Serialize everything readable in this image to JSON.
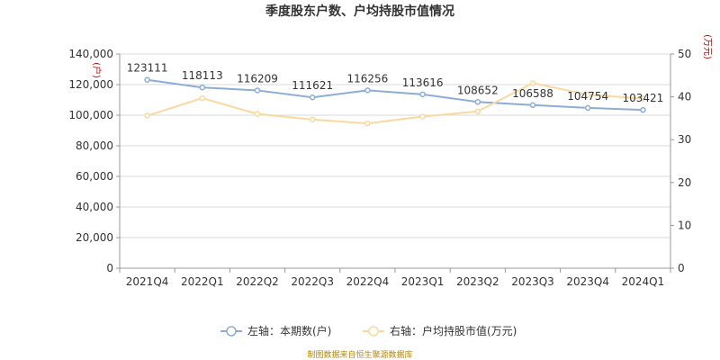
{
  "chart_data": {
    "type": "line",
    "title": "季度股东户数、户均持股市值情况",
    "categories": [
      "2021Q4",
      "2022Q1",
      "2022Q2",
      "2022Q3",
      "2022Q4",
      "2023Q1",
      "2023Q2",
      "2023Q3",
      "2023Q4",
      "2024Q1"
    ],
    "series": [
      {
        "name": "左轴：本期数(户)",
        "axis": "left",
        "color": "#8eacd8",
        "values": [
          123111,
          118113,
          116209,
          111621,
          116256,
          113616,
          108652,
          106588,
          104754,
          103421
        ],
        "labels": [
          "123111",
          "118113",
          "116209",
          "111621",
          "116256",
          "113616",
          "108652",
          "106588",
          "104754",
          "103421"
        ]
      },
      {
        "name": "右轴：户均持股市值(万元)",
        "axis": "right",
        "color": "#fad9a0",
        "values": [
          35.6,
          39.7,
          36.0,
          34.7,
          33.8,
          35.4,
          36.6,
          43.2,
          40.5,
          39.6
        ]
      }
    ],
    "y_left": {
      "unit": "(户)",
      "ylim": [
        0,
        140000
      ],
      "ticks": [
        0,
        20000,
        40000,
        60000,
        80000,
        100000,
        120000,
        140000
      ],
      "tick_labels": [
        "0",
        "20,000",
        "40,000",
        "60,000",
        "80,000",
        "100,000",
        "120,000",
        "140,000"
      ]
    },
    "y_right": {
      "unit": "(万元)",
      "ylim": [
        0,
        50
      ],
      "ticks": [
        0,
        10,
        20,
        30,
        40,
        50
      ],
      "tick_labels": [
        "0",
        "10",
        "20",
        "30",
        "40",
        "50"
      ]
    },
    "grid": true,
    "legend_position": "bottom",
    "source": "制图数据来自恒生聚源数据库"
  }
}
